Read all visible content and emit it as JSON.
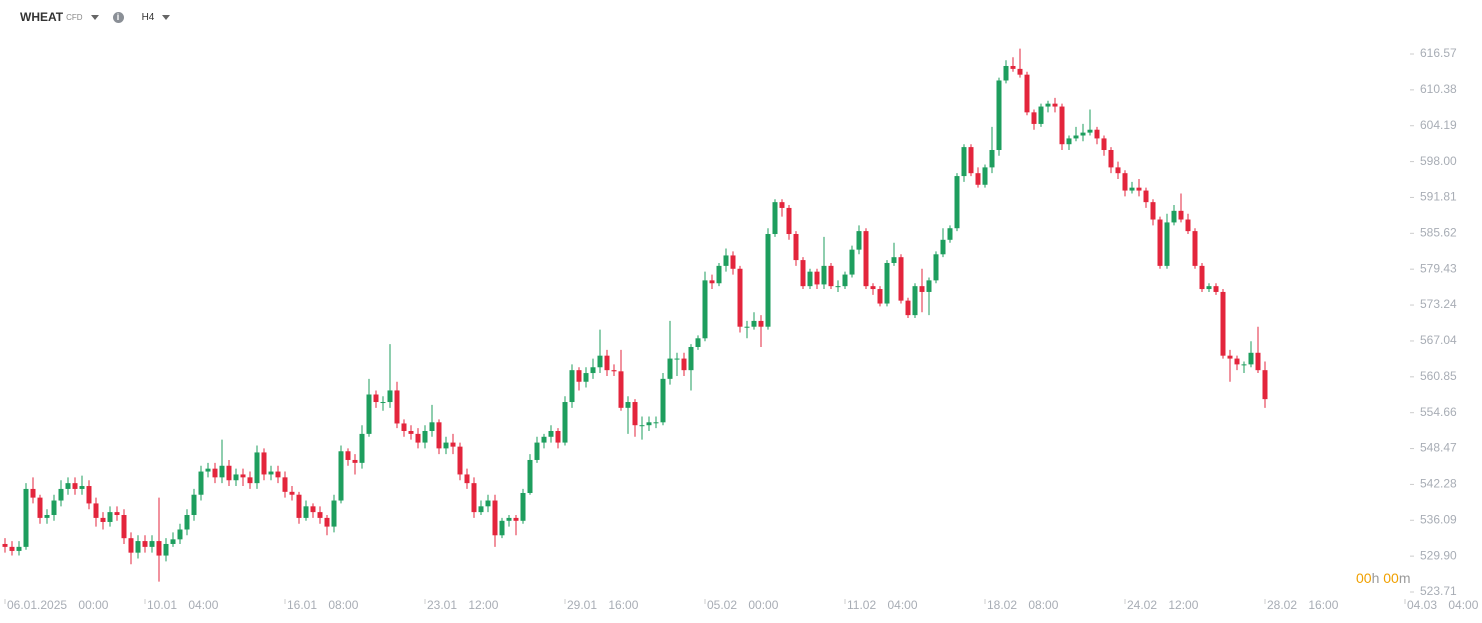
{
  "header": {
    "symbol": "WHEAT",
    "market": "CFD",
    "timeframe": "H4"
  },
  "countdown": {
    "hours": "00",
    "hours_unit": "h",
    "minutes": "00",
    "minutes_unit": "m"
  },
  "chart_data": {
    "type": "candlestick",
    "up_color": "#1e9e5e",
    "down_color": "#e3253c",
    "xlim": [
      0,
      200
    ],
    "xticks": [
      {
        "value": 0,
        "label": "06.01.2025 00:00"
      },
      {
        "value": 20,
        "label": "10.01 04:00"
      },
      {
        "value": 40,
        "label": "16.01 08:00"
      },
      {
        "value": 60,
        "label": "23.01 12:00"
      },
      {
        "value": 80,
        "label": "29.01 16:00"
      },
      {
        "value": 100,
        "label": "05.02 00:00"
      },
      {
        "value": 120,
        "label": "11.02 04:00"
      },
      {
        "value": 140,
        "label": "18.02 08:00"
      },
      {
        "value": 160,
        "label": "24.02 12:00"
      },
      {
        "value": 180,
        "label": "28.02 16:00"
      },
      {
        "value": 200,
        "label": "04.03 04:00"
      }
    ],
    "ylim": [
      522.33,
      625.89
    ],
    "yticks": [
      523.71,
      {
        "value": 529.9,
        "label": "529.90"
      },
      536.09,
      542.28,
      548.47,
      554.66,
      560.85,
      567.04,
      573.24,
      579.43,
      585.62,
      591.81,
      {
        "value": 598,
        "label": "598.00"
      },
      604.19,
      610.38,
      616.57
    ],
    "ohlc": [
      [
        532,
        533,
        530.5,
        531.5
      ],
      [
        531.5,
        532.5,
        530,
        530.8
      ],
      [
        530.8,
        532.5,
        530,
        531.5
      ],
      [
        531.5,
        542.5,
        531,
        541.5
      ],
      [
        541.5,
        543.5,
        539,
        540
      ],
      [
        540,
        540.5,
        535.5,
        536.5
      ],
      [
        536.5,
        538,
        535.5,
        537
      ],
      [
        537,
        540.5,
        536,
        539.5
      ],
      [
        539.5,
        543,
        538.5,
        541.5
      ],
      [
        541.5,
        543.5,
        540.5,
        542.5
      ],
      [
        542.5,
        543.5,
        540.5,
        541.5
      ],
      [
        541.5,
        543.8,
        540.5,
        542
      ],
      [
        542,
        543,
        538,
        539
      ],
      [
        539,
        540,
        535,
        536.5
      ],
      [
        536.5,
        537.5,
        534.5,
        535.8
      ],
      [
        535.8,
        538.5,
        535,
        537.5
      ],
      [
        537.5,
        538.5,
        536,
        537
      ],
      [
        537,
        538,
        532,
        533
      ],
      [
        533,
        534,
        528.5,
        530.5
      ],
      [
        530.5,
        533.5,
        529.5,
        532.5
      ],
      [
        532.5,
        533.5,
        530.5,
        531.5
      ],
      [
        531.5,
        533.5,
        530.5,
        532.5
      ],
      [
        532.5,
        540,
        525.5,
        530
      ],
      [
        530,
        533,
        529,
        532
      ],
      [
        532,
        534,
        531.5,
        532.8
      ],
      [
        532.8,
        535.5,
        532,
        534.5
      ],
      [
        534.5,
        538,
        533.5,
        537
      ],
      [
        537,
        541.5,
        536,
        540.5
      ],
      [
        540.5,
        545.5,
        539.5,
        544.5
      ],
      [
        544.5,
        546,
        543.5,
        545
      ],
      [
        545,
        546,
        542.5,
        543.5
      ],
      [
        543.5,
        550,
        542.5,
        545.5
      ],
      [
        545.5,
        546.5,
        542,
        543
      ],
      [
        543,
        545,
        542,
        544
      ],
      [
        544,
        545,
        542,
        543.5
      ],
      [
        543.5,
        544.5,
        541.5,
        542.5
      ],
      [
        542.5,
        549,
        541.5,
        547.8
      ],
      [
        547.8,
        548.5,
        543,
        544
      ],
      [
        544,
        545.5,
        543,
        544.5
      ],
      [
        544.5,
        545.5,
        542.5,
        543.5
      ],
      [
        543.5,
        544.5,
        540,
        541
      ],
      [
        541,
        542,
        539.5,
        540.5
      ],
      [
        540.5,
        541,
        535.5,
        536.5
      ],
      [
        536.5,
        539.5,
        536,
        538.5
      ],
      [
        538.5,
        539,
        536.5,
        537.5
      ],
      [
        537.5,
        538.5,
        535.5,
        536.5
      ],
      [
        536.5,
        537,
        533.5,
        535
      ],
      [
        535,
        540.5,
        534,
        539.5
      ],
      [
        539.5,
        549,
        539,
        548
      ],
      [
        548,
        548.5,
        545.5,
        546.5
      ],
      [
        546.5,
        547.5,
        544,
        546
      ],
      [
        546,
        552.5,
        545,
        551
      ],
      [
        551,
        560.5,
        550.5,
        557.8
      ],
      [
        557.8,
        558.5,
        555.5,
        556.5
      ],
      [
        556.5,
        557.5,
        555,
        556.5
      ],
      [
        556.5,
        566.5,
        555.5,
        558.5
      ],
      [
        558.5,
        560,
        552,
        552.8
      ],
      [
        552.8,
        553.5,
        550.5,
        551.5
      ],
      [
        551.5,
        552.5,
        550,
        551
      ],
      [
        551,
        552,
        548.5,
        549.5
      ],
      [
        549.5,
        552.5,
        548.5,
        551.5
      ],
      [
        551.5,
        556,
        550.5,
        553
      ],
      [
        553,
        553.5,
        547.5,
        548.5
      ],
      [
        548.5,
        550.5,
        547.5,
        549.5
      ],
      [
        549.5,
        551,
        547.5,
        548.8
      ],
      [
        548.8,
        549.5,
        543,
        544
      ],
      [
        544,
        545,
        541.5,
        542.5
      ],
      [
        542.5,
        543.5,
        536.5,
        537.5
      ],
      [
        537.5,
        539.5,
        537,
        538.5
      ],
      [
        538.5,
        540.5,
        537.5,
        539.5
      ],
      [
        539.5,
        540.5,
        531.5,
        533.5
      ],
      [
        533.5,
        536.5,
        533,
        536
      ],
      [
        536,
        537,
        535,
        536.5
      ],
      [
        536.5,
        537,
        533.5,
        536
      ],
      [
        536,
        541.5,
        535.5,
        540.8
      ],
      [
        540.8,
        547.5,
        540.5,
        546.5
      ],
      [
        546.5,
        550.5,
        546,
        549.5
      ],
      [
        549.5,
        551,
        548.5,
        550.5
      ],
      [
        550.5,
        552.5,
        549.5,
        551.5
      ],
      [
        551.5,
        552,
        548.5,
        549.5
      ],
      [
        549.5,
        557.5,
        549,
        556.5
      ],
      [
        556.5,
        563,
        555.5,
        562
      ],
      [
        562,
        562.5,
        558.5,
        560
      ],
      [
        560,
        562.5,
        559,
        561.5
      ],
      [
        561.5,
        564,
        560.5,
        562.5
      ],
      [
        562.5,
        569,
        561.5,
        564.5
      ],
      [
        564.5,
        565.5,
        561,
        562
      ],
      [
        562,
        563,
        561,
        561.8
      ],
      [
        561.8,
        565.5,
        555,
        555.5
      ],
      [
        555.5,
        557.5,
        551,
        556.5
      ],
      [
        556.5,
        557,
        550.5,
        552.5
      ],
      [
        552.5,
        554,
        550,
        552.5
      ],
      [
        552.5,
        554,
        551.5,
        553
      ],
      [
        553,
        554,
        552,
        553
      ],
      [
        553,
        561.5,
        552.5,
        560.5
      ],
      [
        560.5,
        570.5,
        559.5,
        564
      ],
      [
        564,
        565,
        561,
        564
      ],
      [
        564,
        565,
        561,
        562
      ],
      [
        562,
        566.5,
        558.5,
        566
      ],
      [
        566,
        568,
        565.5,
        567.5
      ],
      [
        567.5,
        579,
        567,
        577.5
      ],
      [
        577.5,
        578.5,
        576,
        577
      ],
      [
        577,
        580.5,
        576.5,
        580
      ],
      [
        580,
        583,
        579,
        581.8
      ],
      [
        581.8,
        582.5,
        578.5,
        579.5
      ],
      [
        579.5,
        580,
        568.5,
        569.5
      ],
      [
        569.5,
        570.5,
        567.5,
        569.5
      ],
      [
        569.5,
        572,
        569,
        570.5
      ],
      [
        570.5,
        571.5,
        566,
        569.5
      ],
      [
        569.5,
        586.5,
        569,
        585.5
      ],
      [
        585.5,
        591.5,
        585,
        591
      ],
      [
        591,
        591.5,
        588.5,
        590
      ],
      [
        590,
        590.5,
        584.5,
        585.5
      ],
      [
        585.5,
        586,
        580,
        581
      ],
      [
        581,
        581.5,
        576,
        576.5
      ],
      [
        576.5,
        579.5,
        576,
        579
      ],
      [
        579,
        579.5,
        576,
        576.8
      ],
      [
        576.8,
        585,
        576,
        580
      ],
      [
        580,
        580.5,
        576,
        576.5
      ],
      [
        576.5,
        577.5,
        575.5,
        576.5
      ],
      [
        576.5,
        579,
        576,
        578.5
      ],
      [
        578.5,
        583.5,
        578,
        582.8
      ],
      [
        582.8,
        587,
        582,
        586
      ],
      [
        586,
        586.5,
        576,
        576.5
      ],
      [
        576.5,
        577,
        575,
        576
      ],
      [
        576,
        576.5,
        573,
        573.5
      ],
      [
        573.5,
        581,
        573,
        580.5
      ],
      [
        580.5,
        584,
        580,
        581.5
      ],
      [
        581.5,
        582,
        573.5,
        574
      ],
      [
        574,
        574.5,
        571,
        571.5
      ],
      [
        571.5,
        577,
        571,
        576.5
      ],
      [
        576.5,
        579.5,
        572,
        575.5
      ],
      [
        575.5,
        578,
        571.5,
        577.5
      ],
      [
        577.5,
        582.5,
        577,
        582
      ],
      [
        582,
        586.5,
        581.5,
        584.5
      ],
      [
        584.5,
        587,
        584,
        586.5
      ],
      [
        586.5,
        596,
        586,
        595.5
      ],
      [
        595.5,
        601,
        594.5,
        600.5
      ],
      [
        600.5,
        601,
        595.5,
        596
      ],
      [
        596,
        597,
        593.5,
        594
      ],
      [
        594,
        597.5,
        593.5,
        597
      ],
      [
        597,
        604,
        596,
        600
      ],
      [
        600,
        612.5,
        599,
        612
      ],
      [
        612,
        615.5,
        611.5,
        614.5
      ],
      [
        614.5,
        616,
        613.5,
        614
      ],
      [
        614,
        617.5,
        612.5,
        613
      ],
      [
        613,
        613.5,
        606,
        606.5
      ],
      [
        606.5,
        607,
        603.5,
        604.5
      ],
      [
        604.5,
        608,
        604,
        607.5
      ],
      [
        607.5,
        608.5,
        606.5,
        608
      ],
      [
        608,
        609,
        606.5,
        607.5
      ],
      [
        607.5,
        608,
        600,
        601
      ],
      [
        601,
        602.5,
        600,
        602
      ],
      [
        602,
        604,
        601.5,
        602.5
      ],
      [
        602.5,
        604.5,
        601.5,
        603
      ],
      [
        603,
        607,
        602.5,
        603.5
      ],
      [
        603.5,
        604,
        601,
        602
      ],
      [
        602,
        602.5,
        599,
        600
      ],
      [
        600,
        600.5,
        596,
        597
      ],
      [
        597,
        598,
        595,
        596
      ],
      [
        596,
        596.5,
        592,
        593
      ],
      [
        593,
        594.5,
        592.5,
        593.5
      ],
      [
        593.5,
        595,
        592,
        593
      ],
      [
        593,
        593.5,
        590,
        591
      ],
      [
        591,
        591.5,
        587,
        588
      ],
      [
        588,
        588.5,
        579.5,
        580
      ],
      [
        580,
        589,
        579.5,
        587.5
      ],
      [
        587.5,
        590.5,
        587,
        589.5
      ],
      [
        589.5,
        592.5,
        587.5,
        588
      ],
      [
        588,
        589,
        585.5,
        586
      ],
      [
        586,
        586.5,
        579.5,
        580
      ],
      [
        580,
        580.5,
        575.5,
        576
      ],
      [
        576,
        577,
        575.5,
        576.5
      ],
      [
        576.5,
        577,
        575,
        575.5
      ],
      [
        575.5,
        576,
        564,
        564.5
      ],
      [
        564.5,
        565.5,
        560,
        564
      ],
      [
        564,
        564.5,
        562,
        563
      ],
      [
        563,
        563.5,
        561.5,
        563
      ],
      [
        563,
        567,
        562.5,
        565
      ],
      [
        565,
        569.5,
        561.5,
        562
      ],
      [
        562,
        563.5,
        555.5,
        557
      ]
    ]
  }
}
